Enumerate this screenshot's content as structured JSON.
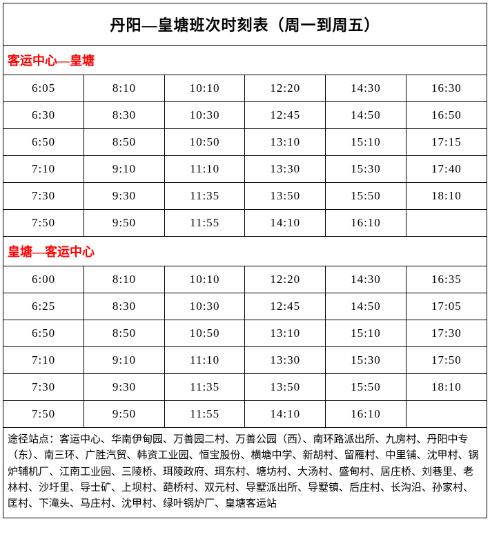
{
  "title": "丹阳—皇塘班次时刻表（周一到周五）",
  "section1_header": "客运中心—皇塘",
  "section2_header": "皇塘—客运中心",
  "section1_rows": [
    [
      "6:05",
      "8:10",
      "10:10",
      "12:20",
      "14:30",
      "16:30"
    ],
    [
      "6:30",
      "8:30",
      "10:30",
      "12:45",
      "14:50",
      "16:50"
    ],
    [
      "6:50",
      "8:50",
      "10:50",
      "13:10",
      "15:10",
      "17:15"
    ],
    [
      "7:10",
      "9:10",
      "11:10",
      "13:30",
      "15:30",
      "17:40"
    ],
    [
      "7:30",
      "9:30",
      "11:35",
      "13:50",
      "15:50",
      "18:10"
    ],
    [
      "7:50",
      "9:50",
      "11:55",
      "14:10",
      "16:10",
      ""
    ]
  ],
  "section2_rows": [
    [
      "6:00",
      "8:10",
      "10:10",
      "12:20",
      "14:30",
      "16:35"
    ],
    [
      "6:25",
      "8:30",
      "10:30",
      "12:45",
      "14:50",
      "17:05"
    ],
    [
      "6:50",
      "8:50",
      "10:50",
      "13:10",
      "15:10",
      "17:30"
    ],
    [
      "7:10",
      "9:10",
      "11:10",
      "13:30",
      "15:30",
      "17:50"
    ],
    [
      "7:30",
      "9:30",
      "11:35",
      "13:50",
      "15:50",
      "18:10"
    ],
    [
      "7:50",
      "9:50",
      "11:55",
      "14:10",
      "16:10",
      ""
    ]
  ],
  "footer": "途径站点：客运中心、华南伊甸园、万善园二村、万善公园（西）、南环路派出所、九房村、丹阳中专（东）、南三环、广胜汽贸、韩资工业园、恒宝股份、横塘中学、新胡村、留雁村、中里铺、沈甲村、锅炉辅机厂、江南工业园、三陵桥、珥陵政府、珥东村、塘坊村、大汤村、盛甸村、居庄桥、刘巷里、老林村、沙圩里、导士矿、上坝村、葩桥村、双元村、导墅派出所、导墅镇、后庄村、长沟沿、孙家村、匡村、下滝头、马庄村、沈甲村、绿叶锅炉厂、皇塘客运站",
  "colors": {
    "header_text": "#ff0000",
    "border": "#000000",
    "background": "#ffffff"
  }
}
